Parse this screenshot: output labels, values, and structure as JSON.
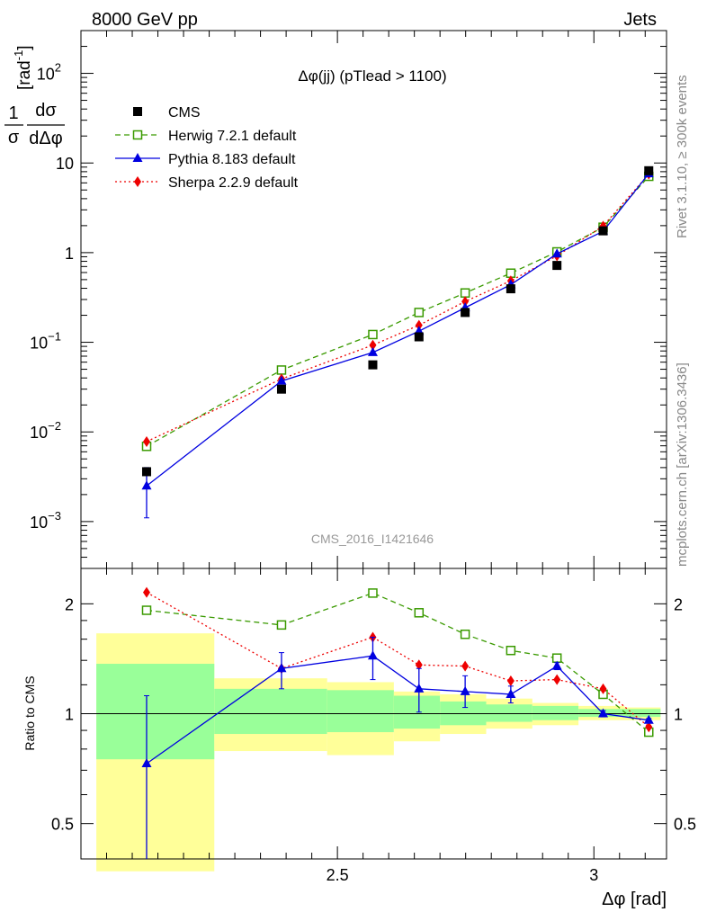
{
  "header": {
    "left": "8000 GeV pp",
    "right": "Jets"
  },
  "side_labels": {
    "rivet": "Rivet 3.1.10, ≥ 300k events",
    "mcplots": "mcplots.cern.ch [arXiv:1306.3436]"
  },
  "watermark": "CMS_2016_I1421646",
  "chart_data": [
    {
      "type": "line",
      "scale": "log",
      "title": "Δφ(jj) (pTlead >  1100)",
      "ylabel": "1/σ dσ/dΔφ [rad⁻¹]",
      "ylabel_parts": {
        "num": "1",
        "den": "σ",
        "dnum": "dσ",
        "dden": "dΔφ",
        "unit": "[rad",
        "exp": "-1",
        "close": "]"
      },
      "xlim": [
        2.0,
        3.1416
      ],
      "ylim": [
        0.0003,
        300
      ],
      "y_ticks": [
        {
          "value": 0.001,
          "base": "10",
          "exp": "−3"
        },
        {
          "value": 0.01,
          "base": "10",
          "exp": "−2"
        },
        {
          "value": 0.1,
          "base": "10",
          "exp": "−1"
        },
        {
          "value": 1,
          "base": "1",
          "exp": ""
        },
        {
          "value": 10,
          "base": "10",
          "exp": ""
        },
        {
          "value": 100,
          "base": "10",
          "exp": "2"
        }
      ],
      "legend": [
        {
          "label": "CMS",
          "series": "CMS"
        },
        {
          "label": "Herwig 7.2.1 default",
          "series": "Herwig"
        },
        {
          "label": "Pythia 8.183 default",
          "series": "Pythia"
        },
        {
          "label": "Sherpa 2.2.9 default",
          "series": "Sherpa"
        }
      ],
      "x": [
        2.128,
        2.391,
        2.569,
        2.659,
        2.749,
        2.838,
        2.928,
        3.018,
        3.107
      ],
      "series": [
        {
          "name": "CMS",
          "color": "#000000",
          "marker": "square-filled",
          "values": [
            0.0036,
            0.03,
            0.056,
            0.115,
            0.215,
            0.395,
            0.72,
            1.75,
            8.2
          ]
        },
        {
          "name": "Herwig",
          "color": "#3a9a00",
          "marker": "square-open",
          "dash": "6,4",
          "values": [
            0.0069,
            0.049,
            0.122,
            0.215,
            0.355,
            0.59,
            1.02,
            1.92,
            7.1
          ]
        },
        {
          "name": "Pythia",
          "color": "#0000e0",
          "marker": "triangle",
          "values": [
            0.0025,
            0.037,
            0.077,
            0.133,
            0.243,
            0.44,
            0.97,
            1.73,
            7.6
          ],
          "err_lo": [
            0.0011,
            0.0,
            0.0,
            0.0,
            0.0,
            0.0,
            0.0,
            0.0,
            0.0
          ],
          "err_hi": [
            0.004,
            0.0,
            0.0,
            0.0,
            0.0,
            0.0,
            0.0,
            0.0,
            0.0
          ]
        },
        {
          "name": "Sherpa",
          "color": "#ee0000",
          "marker": "diamond",
          "dash": "2,3",
          "values": [
            0.0078,
            0.039,
            0.093,
            0.155,
            0.285,
            0.485,
            0.92,
            1.98,
            7.5
          ]
        }
      ]
    },
    {
      "type": "line",
      "scale": "log",
      "ylabel": "Ratio to CMS",
      "xlabel": "Δφ [rad]",
      "xlim": [
        2.0,
        3.1416
      ],
      "ylim": [
        0.4,
        2.5
      ],
      "x_ticks": [
        {
          "value": 2.5,
          "label": "2.5"
        },
        {
          "value": 3,
          "label": "3"
        }
      ],
      "y_ticks": [
        {
          "value": 0.5,
          "label": "0.5"
        },
        {
          "value": 1,
          "label": "1"
        },
        {
          "value": 2,
          "label": "2"
        }
      ],
      "bands": [
        {
          "x_lo": 2.03,
          "x_hi": 2.26,
          "yellow": [
            0.37,
            1.66
          ],
          "green": [
            0.75,
            1.37
          ]
        },
        {
          "x_lo": 2.26,
          "x_hi": 2.48,
          "yellow": [
            0.79,
            1.25
          ],
          "green": [
            0.88,
            1.17
          ]
        },
        {
          "x_lo": 2.48,
          "x_hi": 2.61,
          "yellow": [
            0.77,
            1.22
          ],
          "green": [
            0.89,
            1.16
          ]
        },
        {
          "x_lo": 2.61,
          "x_hi": 2.7,
          "yellow": [
            0.84,
            1.15
          ],
          "green": [
            0.91,
            1.12
          ]
        },
        {
          "x_lo": 2.7,
          "x_hi": 2.79,
          "yellow": [
            0.88,
            1.13
          ],
          "green": [
            0.93,
            1.08
          ]
        },
        {
          "x_lo": 2.79,
          "x_hi": 2.88,
          "yellow": [
            0.91,
            1.1
          ],
          "green": [
            0.95,
            1.06
          ]
        },
        {
          "x_lo": 2.88,
          "x_hi": 2.97,
          "yellow": [
            0.93,
            1.07
          ],
          "green": [
            0.96,
            1.05
          ]
        },
        {
          "x_lo": 2.97,
          "x_hi": 3.06,
          "yellow": [
            0.96,
            1.05
          ],
          "green": [
            0.98,
            1.03
          ]
        },
        {
          "x_lo": 3.06,
          "x_hi": 3.13,
          "yellow": [
            0.96,
            1.04
          ],
          "green": [
            0.98,
            1.03
          ]
        }
      ],
      "x": [
        2.128,
        2.391,
        2.569,
        2.659,
        2.749,
        2.838,
        2.928,
        3.018,
        3.107
      ],
      "series": [
        {
          "name": "Herwig",
          "color": "#3a9a00",
          "marker": "square-open",
          "dash": "6,4",
          "values": [
            1.92,
            1.75,
            2.14,
            1.89,
            1.65,
            1.49,
            1.42,
            1.13,
            0.89
          ]
        },
        {
          "name": "Pythia",
          "color": "#0000e0",
          "marker": "triangle",
          "values": [
            0.73,
            1.33,
            1.44,
            1.17,
            1.15,
            1.13,
            1.35,
            1.0,
            0.96
          ],
          "err_lo": [
            0.36,
            1.17,
            1.24,
            1.01,
            1.04,
            1.07,
            1.32,
            0.98,
            0.95
          ],
          "err_hi": [
            1.12,
            1.47,
            1.62,
            1.33,
            1.27,
            1.19,
            1.38,
            1.02,
            0.97
          ]
        },
        {
          "name": "Sherpa",
          "color": "#ee0000",
          "marker": "diamond",
          "dash": "2,3",
          "values": [
            2.15,
            1.33,
            1.62,
            1.36,
            1.35,
            1.23,
            1.24,
            1.17,
            0.92
          ]
        }
      ]
    }
  ]
}
